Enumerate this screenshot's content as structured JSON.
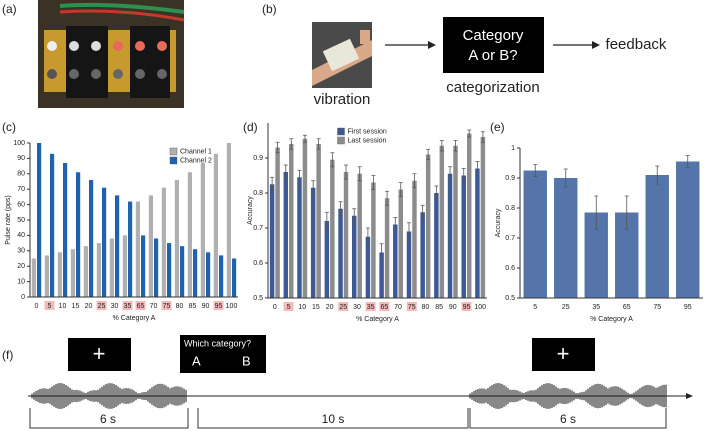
{
  "panel_labels": [
    "(a)",
    "(b)",
    "(c)",
    "(d)",
    "(e)",
    "(f)"
  ],
  "diagram": {
    "photo_label": "vibration",
    "box": [
      "Category",
      "A or B?"
    ],
    "box_label": "categorization",
    "output": "feedback"
  },
  "timeline": {
    "fixation": "+",
    "prompt": "Which category?",
    "options": [
      "A",
      "B"
    ],
    "durations": [
      "6 s",
      "10 s",
      "6 s"
    ]
  },
  "chart_data": [
    {
      "type": "bar",
      "xlabel": "% Category A",
      "ylabel": "Pulse rate (pps)",
      "categories": [
        "0",
        "5",
        "10",
        "15",
        "20",
        "25",
        "30",
        "35",
        "65",
        "70",
        "75",
        "80",
        "85",
        "90",
        "95",
        "100"
      ],
      "series": [
        {
          "name": "Channel 1",
          "color": "#b0b0b0",
          "values": [
            25,
            27,
            29,
            31,
            33,
            35,
            38,
            40,
            62,
            66,
            71,
            76,
            81,
            87,
            93,
            100
          ]
        },
        {
          "name": "Channel 2",
          "color": "#1f62b0",
          "values": [
            100,
            93,
            87,
            81,
            76,
            71,
            66,
            62,
            40,
            38,
            35,
            33,
            31,
            29,
            27,
            25
          ]
        }
      ],
      "ylim": [
        0,
        100
      ],
      "yticks": [
        0,
        10,
        20,
        30,
        40,
        50,
        60,
        70,
        80,
        90,
        100
      ],
      "highlight": [
        "5",
        "25",
        "35",
        "65",
        "75",
        "95"
      ],
      "highlight_color": "#f4b9b9",
      "legend": "upper right"
    },
    {
      "type": "bar",
      "xlabel": "% Category A",
      "ylabel": "Accuracy",
      "categories": [
        "0",
        "5",
        "10",
        "15",
        "20",
        "25",
        "30",
        "35",
        "65",
        "70",
        "75",
        "80",
        "85",
        "90",
        "95",
        "100"
      ],
      "series": [
        {
          "name": "First session",
          "color": "#3d5a96",
          "values": [
            0.825,
            0.86,
            0.845,
            0.815,
            0.72,
            0.755,
            0.735,
            0.675,
            0.63,
            0.71,
            0.69,
            0.745,
            0.8,
            0.855,
            0.85,
            0.87
          ],
          "errors": [
            0.02,
            0.02,
            0.02,
            0.02,
            0.025,
            0.02,
            0.02,
            0.025,
            0.025,
            0.02,
            0.025,
            0.02,
            0.02,
            0.02,
            0.02,
            0.02
          ]
        },
        {
          "name": "Last session",
          "color": "#8c8c8c",
          "values": [
            0.93,
            0.94,
            0.955,
            0.94,
            0.895,
            0.86,
            0.855,
            0.83,
            0.785,
            0.81,
            0.835,
            0.91,
            0.935,
            0.935,
            0.97,
            0.96
          ],
          "errors": [
            0.015,
            0.015,
            0.01,
            0.015,
            0.02,
            0.02,
            0.02,
            0.02,
            0.02,
            0.02,
            0.02,
            0.015,
            0.015,
            0.015,
            0.01,
            0.015
          ]
        }
      ],
      "ylim": [
        0.5,
        1
      ],
      "yticks": [
        0.5,
        0.6,
        0.7,
        0.8,
        0.9
      ],
      "highlight": [
        "5",
        "25",
        "35",
        "65",
        "75",
        "95"
      ],
      "highlight_color": "#f4b9b9",
      "legend": "upper center"
    },
    {
      "type": "bar",
      "xlabel": "% Category A",
      "ylabel": "Accuracy",
      "categories": [
        "5",
        "25",
        "35",
        "65",
        "75",
        "95"
      ],
      "series": [
        {
          "color": "#5574aa",
          "values": [
            0.925,
            0.9,
            0.785,
            0.785,
            0.91,
            0.955
          ],
          "errors": [
            0.02,
            0.03,
            0.055,
            0.055,
            0.03,
            0.02
          ]
        }
      ],
      "ylim": [
        0.5,
        1
      ],
      "yticks": [
        0.5,
        0.6,
        0.7,
        0.8,
        0.9,
        1
      ]
    }
  ]
}
